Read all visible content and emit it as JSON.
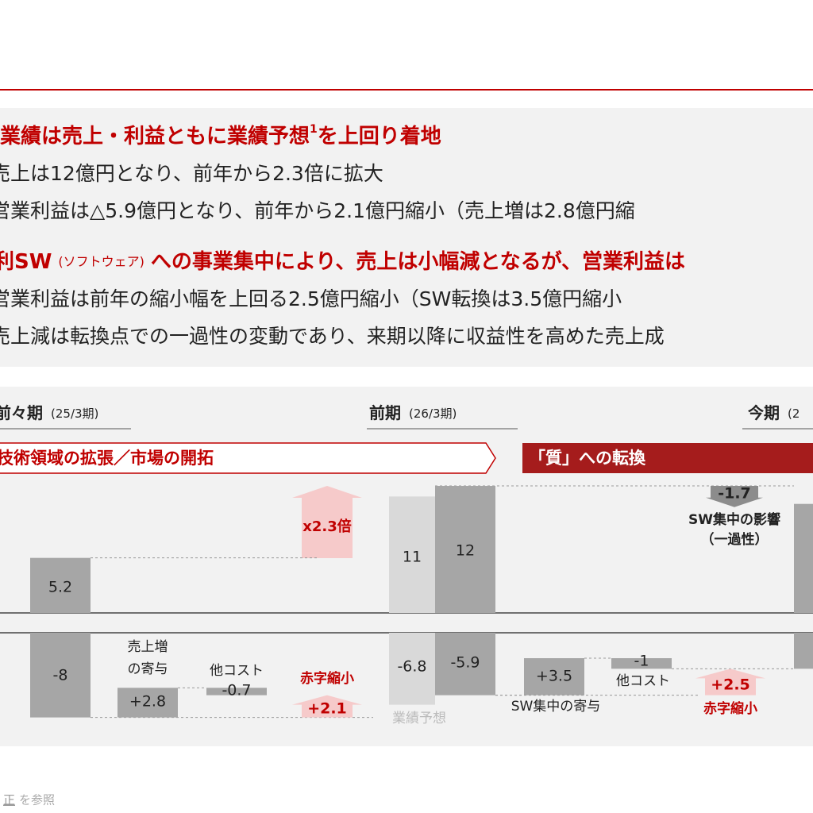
{
  "headline1": {
    "text": "業績は売上・利益ともに業績予想",
    "note": "1",
    "tail": "を上回り着地"
  },
  "bullets1": [
    "売上は12億円となり、前年から2.3倍に拡大",
    "営業利益は△5.9億円となり、前年から2.1億円縮小（売上増は2.8億円縮"
  ],
  "headline2": {
    "lead": "利SW",
    "small": "(ソフトウェア)",
    "tail": "への事業集中により、売上は小幅減となるが、営業利益は"
  },
  "bullets2": [
    "営業利益は前年の縮小幅を上回る2.5億円縮小（SW転換は3.5億円縮小",
    "売上減は転換点での一過性の変動であり、来期以降に収益性を高めた売上成"
  ],
  "periods": [
    {
      "name": "前々期",
      "fiscal": "(25/3期)"
    },
    {
      "name": "前期",
      "fiscal": "(26/3期)"
    },
    {
      "name": "今期",
      "fiscal": "(2"
    }
  ],
  "banners": [
    "技術領域の拡張／市場の開拓",
    "「質」への転換"
  ],
  "growth_label": "x2.3倍",
  "sales": [
    {
      "value": 5.2
    },
    {
      "value": 11
    },
    {
      "value": 12
    },
    {
      "value": -1.7,
      "caption": [
        "SW集中の影響",
        "（一過性）"
      ]
    },
    {
      "value": 10.3
    }
  ],
  "profit": [
    {
      "value": -8
    },
    {
      "value": 2.8,
      "value_label": "+2.8",
      "caption": [
        "売上増",
        "の寄与"
      ]
    },
    {
      "value": -0.7,
      "caption": [
        "他コスト"
      ]
    },
    {
      "value": -6.8,
      "caption": [
        "業績予想"
      ]
    },
    {
      "value": -5.9
    },
    {
      "value": 3.5,
      "value_label": "+3.5",
      "caption": [
        "SW集中の寄与"
      ]
    },
    {
      "value": -1,
      "caption": [
        "他コスト"
      ]
    },
    {
      "value": -3.4
    }
  ],
  "arrows": [
    {
      "value": 2.1,
      "value_label": "+2.1",
      "caption": "赤字縮小"
    },
    {
      "value": 2.5,
      "value_label": "+2.5",
      "caption": "赤字縮小"
    }
  ],
  "footer": {
    "link": "正",
    "text": "を参照"
  }
}
